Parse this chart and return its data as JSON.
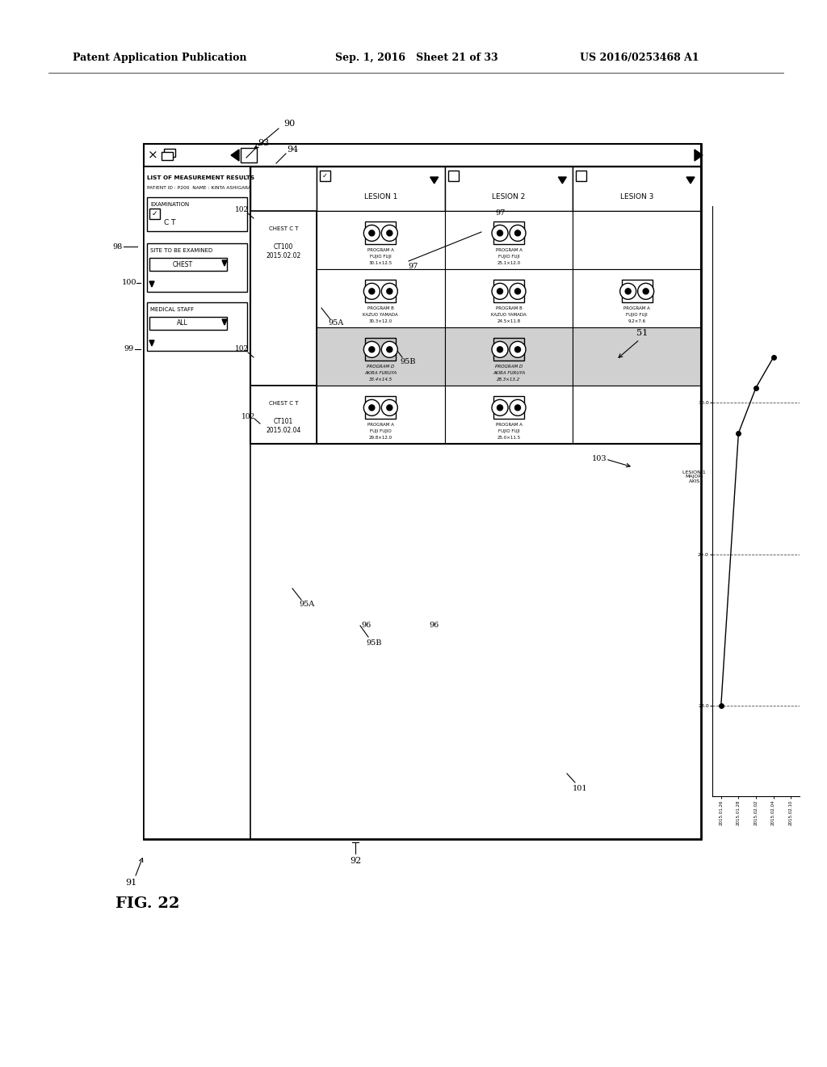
{
  "header_left": "Patent Application Publication",
  "header_mid": "Sep. 1, 2016   Sheet 21 of 33",
  "header_right": "US 2016/0253468 A1",
  "fig_label": "FIG. 22",
  "bg_color": "#ffffff",
  "screen_title": "LIST OF MEASUREMENT RESULTS",
  "patient_line": "PATIENT ID : P200  NAME : KINTA ASHIGARA",
  "examination_label": "EXAMINATION",
  "examination_val": "C T",
  "site_label": "SITE TO BE EXAMINED",
  "site_val": "CHEST",
  "medical_staff_label": "MEDICAL STAFF",
  "medical_staff_val": "ALL",
  "lesion_cols": [
    "LESION 1",
    "LESION 2",
    "LESION 3"
  ],
  "rows": [
    {
      "patient_id": "CT100\n2015.02.02",
      "exam_type": "CHEST C T",
      "sub_rows": [
        {
          "l1_text": "30.1×12.5\nFUJIO FUJI\nPROGRAM A",
          "l2_text": "25.1×12.0\nFUJIO FUJI\nPROGRAM A",
          "l3_text": "",
          "has_l1_img": true,
          "has_l2_img": true,
          "has_l3_img": false,
          "shaded": false
        },
        {
          "l1_text": "30.3×12.0\nKAZUO YAMADA\nPROGRAM B",
          "l2_text": "24.5×11.8\nKAZUO YAMADA\nPROGRAM B",
          "l3_text": "9.2×7.6\nFUJIO FUJI\nPROGRAM A",
          "has_l1_img": true,
          "has_l2_img": true,
          "has_l3_img": true,
          "shaded": false
        },
        {
          "l1_text": "33.4×14.5\nAKIRA FURUYA\nPROGRAM D",
          "l2_text": "28.3×13.2\nAKIRA FURUYA\nPROGRAM D",
          "l3_text": "",
          "has_l1_img": true,
          "has_l2_img": true,
          "has_l3_img": false,
          "shaded": true
        }
      ]
    },
    {
      "patient_id": "CT101\n2015.02.04",
      "exam_type": "CHEST C T",
      "sub_rows": [
        {
          "l1_text": "29.8×12.0\nFUJI FUJIO\nPROGRAM A",
          "l2_text": "25.0×11.5\nFUJIO FUJI\nPROGRAM A",
          "l3_text": "",
          "has_l1_img": true,
          "has_l2_img": true,
          "has_l3_img": false,
          "shaded": false
        }
      ]
    }
  ],
  "graph_dates": [
    "2015.01.26",
    "2015.01.28",
    "2015.02.02",
    "2015.02.04",
    "2015.02.10"
  ],
  "graph_values": [
    28.0,
    29.8,
    30.1,
    30.3,
    null
  ],
  "graph_yticks": [
    28.0,
    29.0,
    30.0
  ],
  "graph_ylabel": "LESION 1\nMAJOR-\nAXIS"
}
